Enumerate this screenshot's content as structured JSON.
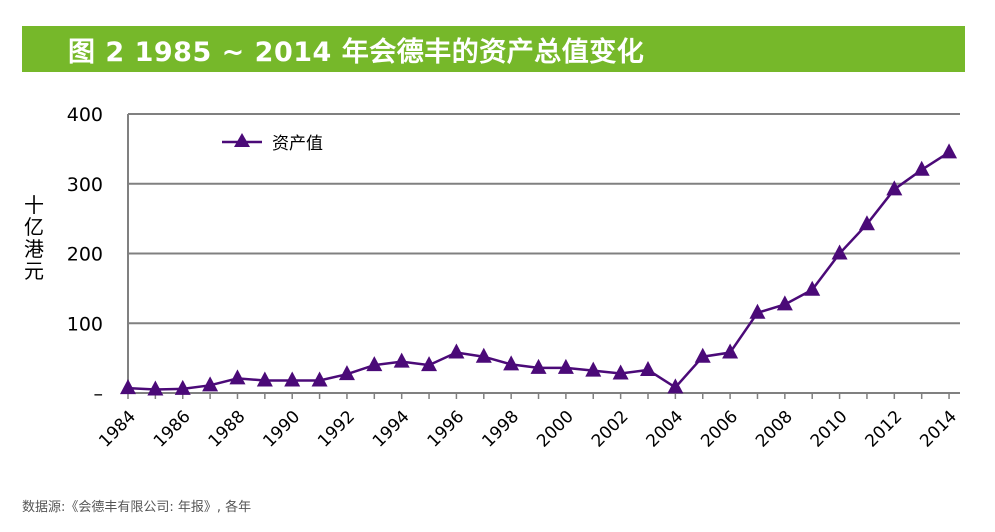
{
  "title": "图 2 1985 ~ 2014 年会德丰的资产总值变化",
  "source": "数据源:《会德丰有限公司: 年报》, 各年",
  "colors": {
    "title_bg": "#76b82a",
    "series": "#4b0a78",
    "grid": "#808080",
    "text": "#000000"
  },
  "chart_data": {
    "type": "line",
    "ylabel": "十亿港元",
    "xlabel": "",
    "ylim": [
      0,
      400
    ],
    "y_ticks": [
      0,
      100,
      200,
      300,
      400
    ],
    "y_tick_labels": [
      "–",
      "100",
      "200",
      "300",
      "400"
    ],
    "x_ticks": [
      1984,
      1986,
      1988,
      1990,
      1992,
      1994,
      1996,
      1998,
      2000,
      2002,
      2004,
      2006,
      2008,
      2010,
      2012,
      2014
    ],
    "legend_position": "top-left",
    "grid": true,
    "marker": "triangle",
    "series": [
      {
        "name": "资产值",
        "x": [
          1984,
          1985,
          1986,
          1987,
          1988,
          1989,
          1990,
          1991,
          1992,
          1993,
          1994,
          1995,
          1996,
          1997,
          1998,
          1999,
          2000,
          2001,
          2002,
          2003,
          2004,
          2005,
          2006,
          2007,
          2008,
          2009,
          2010,
          2011,
          2012,
          2013,
          2014
        ],
        "values": [
          7,
          5,
          6,
          11,
          21,
          18,
          18,
          18,
          27,
          40,
          45,
          40,
          58,
          52,
          41,
          36,
          36,
          32,
          28,
          33,
          8,
          52,
          58,
          115,
          127,
          148,
          200,
          242,
          292,
          320,
          345
        ]
      }
    ]
  }
}
